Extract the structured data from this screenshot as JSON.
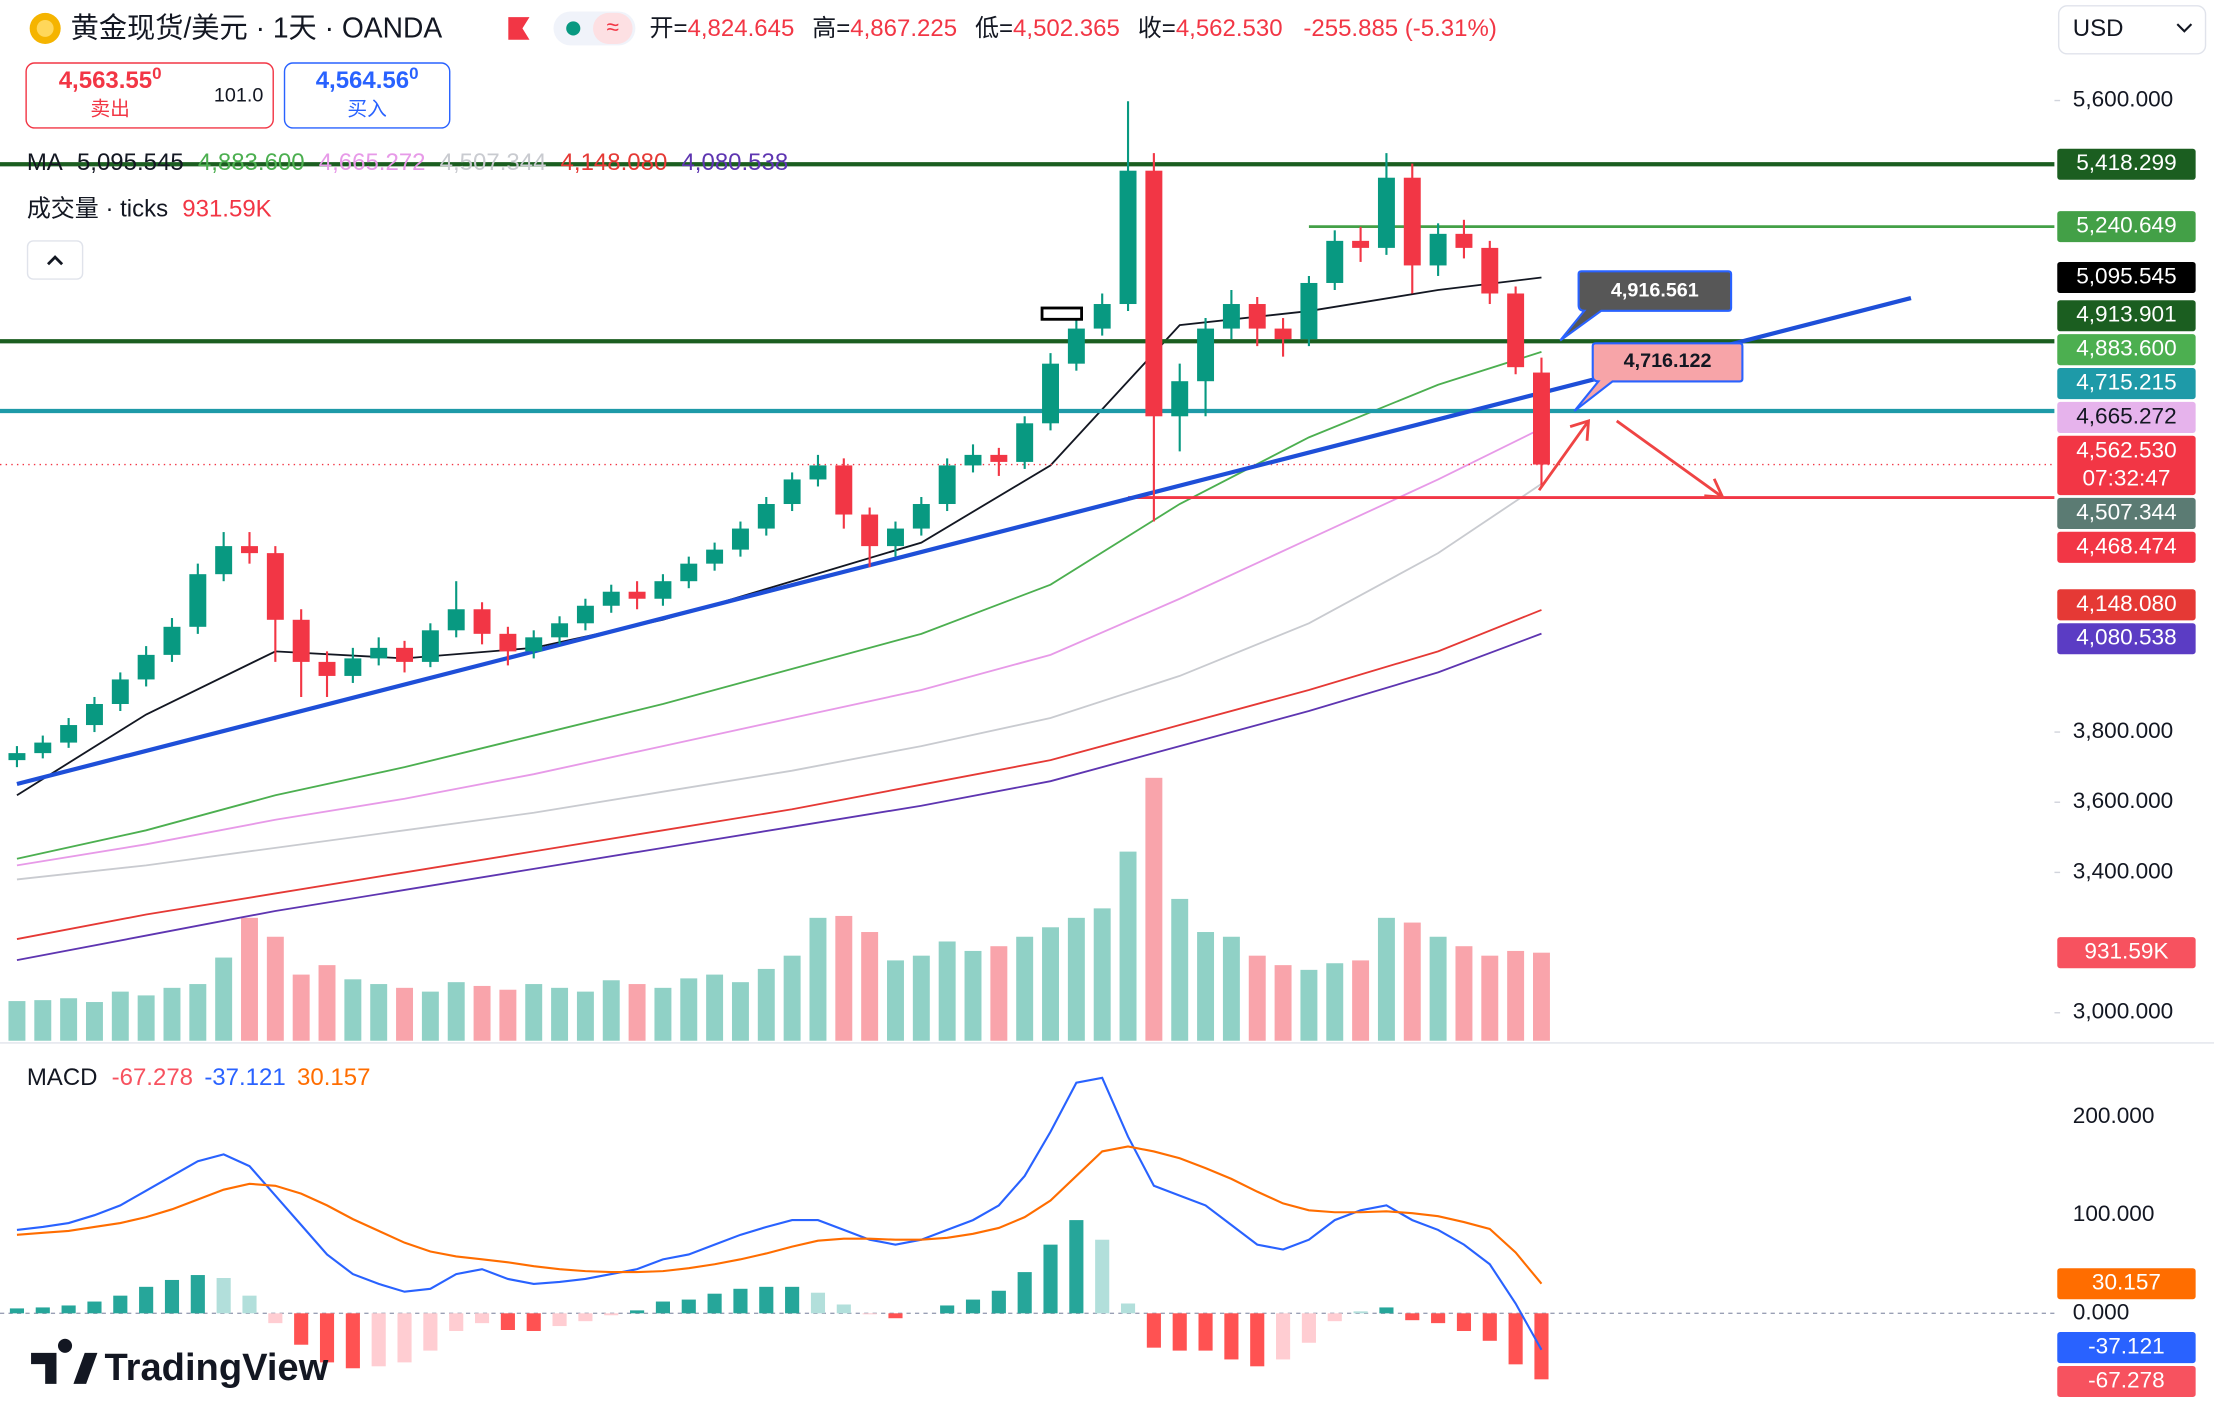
{
  "header": {
    "title": "黄金现货/美元 · 1天 · OANDA",
    "ohlc": [
      {
        "label": "开=",
        "value": "4,824.645"
      },
      {
        "label": "高=",
        "value": "4,867.225"
      },
      {
        "label": "低=",
        "value": "4,502.365"
      },
      {
        "label": "收=",
        "value": "4,562.530"
      }
    ],
    "change": "-255.885 (-5.31%)",
    "sell": {
      "price": "4,563.55",
      "sup": "0",
      "label": "卖出"
    },
    "spread": "101.0",
    "buy": {
      "price": "4,564.56",
      "sup": "0",
      "label": "买入"
    },
    "currency": "USD",
    "logo": "TradingView"
  },
  "chart_data": {
    "type": "candlestick",
    "up_color": "#089981",
    "down_color": "#f23645",
    "ylim": [
      2920,
      5886
    ],
    "yticks": [
      {
        "value": 5600,
        "label": "5,600.000"
      },
      {
        "value": 3800,
        "label": "3,800.000"
      },
      {
        "value": 3600,
        "label": "3,600.000"
      },
      {
        "value": 3400,
        "label": "3,400.000"
      },
      {
        "value": 3000,
        "label": "3,000.000"
      }
    ],
    "candles": [
      [
        3720,
        3760,
        3700,
        3740
      ],
      [
        3740,
        3790,
        3725,
        3770
      ],
      [
        3770,
        3840,
        3755,
        3820
      ],
      [
        3820,
        3900,
        3800,
        3880
      ],
      [
        3880,
        3970,
        3860,
        3950
      ],
      [
        3950,
        4045,
        3930,
        4020
      ],
      [
        4020,
        4125,
        4000,
        4100
      ],
      [
        4100,
        4280,
        4080,
        4250
      ],
      [
        4250,
        4370,
        4230,
        4330
      ],
      [
        4330,
        4370,
        4280,
        4310
      ],
      [
        4310,
        4330,
        4000,
        4120
      ],
      [
        4120,
        4150,
        3900,
        4000
      ],
      [
        4000,
        4030,
        3900,
        3960
      ],
      [
        3960,
        4040,
        3940,
        4010
      ],
      [
        4010,
        4070,
        3990,
        4040
      ],
      [
        4040,
        4060,
        3970,
        4000
      ],
      [
        4000,
        4110,
        3985,
        4090
      ],
      [
        4090,
        4230,
        4070,
        4150
      ],
      [
        4150,
        4170,
        4050,
        4080
      ],
      [
        4080,
        4100,
        3990,
        4030
      ],
      [
        4030,
        4090,
        4010,
        4070
      ],
      [
        4070,
        4130,
        4050,
        4110
      ],
      [
        4110,
        4180,
        4090,
        4160
      ],
      [
        4160,
        4220,
        4140,
        4200
      ],
      [
        4200,
        4230,
        4150,
        4180
      ],
      [
        4180,
        4250,
        4160,
        4230
      ],
      [
        4230,
        4300,
        4210,
        4280
      ],
      [
        4280,
        4340,
        4260,
        4320
      ],
      [
        4320,
        4400,
        4300,
        4380
      ],
      [
        4380,
        4470,
        4360,
        4450
      ],
      [
        4450,
        4540,
        4430,
        4520
      ],
      [
        4520,
        4590,
        4500,
        4560
      ],
      [
        4560,
        4580,
        4380,
        4420
      ],
      [
        4420,
        4440,
        4270,
        4330
      ],
      [
        4330,
        4400,
        4300,
        4380
      ],
      [
        4380,
        4470,
        4360,
        4450
      ],
      [
        4450,
        4580,
        4430,
        4560
      ],
      [
        4560,
        4620,
        4540,
        4590
      ],
      [
        4590,
        4610,
        4530,
        4570
      ],
      [
        4570,
        4700,
        4550,
        4680
      ],
      [
        4680,
        4880,
        4660,
        4850
      ],
      [
        4850,
        4980,
        4830,
        4950
      ],
      [
        4950,
        5050,
        4930,
        5020
      ],
      [
        5020,
        5598,
        5000,
        5400
      ],
      [
        5400,
        5450,
        4400,
        4700
      ],
      [
        4700,
        4850,
        4600,
        4800
      ],
      [
        4800,
        4980,
        4700,
        4950
      ],
      [
        4950,
        5060,
        4920,
        5020
      ],
      [
        5020,
        5040,
        4900,
        4950
      ],
      [
        4950,
        4980,
        4870,
        4920
      ],
      [
        4920,
        5100,
        4900,
        5080
      ],
      [
        5080,
        5230,
        5060,
        5200
      ],
      [
        5200,
        5240,
        5140,
        5180
      ],
      [
        5180,
        5450,
        5160,
        5380
      ],
      [
        5380,
        5420,
        5050,
        5130
      ],
      [
        5130,
        5250,
        5100,
        5220
      ],
      [
        5220,
        5260,
        5150,
        5180
      ],
      [
        5180,
        5200,
        5020,
        5050
      ],
      [
        5050,
        5070,
        4820,
        4840
      ],
      [
        4824.645,
        4867.225,
        4502.365,
        4562.53
      ]
    ],
    "ma_title": "MA",
    "ma_x": [
      0,
      5,
      10,
      15,
      20,
      25,
      30,
      35,
      40,
      45,
      50,
      55,
      59
    ],
    "ma": [
      {
        "color": "#131722",
        "badge_color": "#000000",
        "badge_text": "#ffffff",
        "label": "5,095.545",
        "values": [
          3620,
          3850,
          4030,
          4010,
          4040,
          4120,
          4230,
          4340,
          4560,
          4960,
          5000,
          5060,
          5095.545
        ]
      },
      {
        "color": "#4caf50",
        "badge_color": "#4caf50",
        "badge_text": "#ffffff",
        "label": "4,883.600",
        "values": [
          3439,
          3520,
          3620,
          3700,
          3790,
          3880,
          3980,
          4080,
          4220,
          4450,
          4640,
          4790,
          4883.6
        ]
      },
      {
        "color": "#e79ae8",
        "badge_color": "#e6b3ec",
        "badge_text": "#131722",
        "label": "4,665.272",
        "values": [
          3420,
          3480,
          3550,
          3610,
          3680,
          3760,
          3840,
          3920,
          4020,
          4180,
          4350,
          4520,
          4665.272
        ]
      },
      {
        "color": "#c9cbd0",
        "badge_color": "#5b7b73",
        "badge_text": "#ffffff",
        "label": "4,507.344",
        "values": [
          3380,
          3420,
          3470,
          3520,
          3570,
          3630,
          3690,
          3760,
          3840,
          3960,
          4110,
          4310,
          4507.344
        ]
      },
      {
        "color": "#e53935",
        "badge_color": "#e53935",
        "badge_text": "#ffffff",
        "label": "4,148.080",
        "values": [
          3210,
          3280,
          3340,
          3400,
          3460,
          3520,
          3580,
          3650,
          3720,
          3820,
          3920,
          4030,
          4148.08
        ]
      },
      {
        "color": "#5e35b1",
        "badge_color": "#5b3cc4",
        "badge_text": "#ffffff",
        "label": "4,080.538",
        "values": [
          3150,
          3220,
          3290,
          3350,
          3410,
          3470,
          3530,
          3590,
          3660,
          3760,
          3860,
          3970,
          4080.538
        ]
      }
    ],
    "trendline": {
      "x": [
        0,
        73.3
      ],
      "y": [
        3652,
        5037
      ],
      "color": "#1e4fd8"
    },
    "levels": [
      {
        "value": 5418.299,
        "label": "5,418.299",
        "color": "#1b5e20"
      },
      {
        "value": 5240.649,
        "label": "5,240.649",
        "color": "#43a047",
        "from": 50
      },
      {
        "value": 4913.901,
        "label": "4,913.901",
        "color": "#1b5e20"
      },
      {
        "value": 4715.215,
        "label": "4,715.215",
        "color": "#1e9aa8"
      },
      {
        "value": 4468.474,
        "label": "4,468.474",
        "color": "#f23645",
        "from": 43
      }
    ],
    "current_price": {
      "value": 4562.53,
      "label": "4,562.530",
      "countdown": "07:32:47",
      "color": "#f23645"
    },
    "annotations": [
      {
        "text": "4,916.561"
      },
      {
        "text": "4,716.122"
      }
    ],
    "volume": {
      "title": "成交量 · ticks",
      "label": "931.59K",
      "ylim": [
        0,
        11000
      ],
      "values": [
        420,
        430,
        450,
        410,
        520,
        480,
        560,
        600,
        880,
        1300,
        1100,
        700,
        800,
        650,
        600,
        560,
        520,
        620,
        580,
        540,
        600,
        560,
        520,
        640,
        600,
        560,
        660,
        700,
        620,
        760,
        900,
        1300,
        1320,
        1150,
        850,
        900,
        1050,
        950,
        1000,
        1100,
        1200,
        1300,
        1400,
        2000,
        2780,
        1500,
        1150,
        1100,
        900,
        800,
        750,
        820,
        850,
        1300,
        1250,
        1100,
        1000,
        900,
        950,
        931.59
      ]
    },
    "macd": {
      "title": "MACD",
      "ylim": [
        -106.5,
        273.4
      ],
      "yticks": [
        {
          "value": 200,
          "label": "200.000"
        },
        {
          "value": 100,
          "label": "100.000"
        },
        {
          "value": 0,
          "label": "0.000"
        }
      ],
      "histogram": {
        "label": "-67.278",
        "color": "#f7525f",
        "colors": [
          "#26a69a",
          "#b2dfdb",
          "#ff5252",
          "#ffcdd2"
        ],
        "values": [
          5,
          6,
          8,
          12,
          18,
          27,
          34,
          39,
          36,
          18,
          -10,
          -32,
          -50,
          -56,
          -54,
          -50,
          -38,
          -18,
          -10,
          -17,
          -18,
          -13,
          -8,
          -2,
          3,
          12,
          14,
          20,
          25,
          27,
          27,
          21,
          9,
          -1,
          -5,
          0,
          8,
          14,
          23,
          42,
          70,
          95,
          75,
          10,
          -35,
          -38,
          -38,
          -47,
          -54,
          -47,
          -30,
          -8,
          2,
          6,
          -7,
          -10,
          -18,
          -28,
          -52,
          -67.278
        ]
      },
      "macd": {
        "label": "-37.121",
        "color": "#2962ff",
        "values": [
          85,
          88,
          92,
          100,
          110,
          125,
          140,
          155,
          162,
          150,
          120,
          90,
          60,
          40,
          30,
          22,
          25,
          40,
          45,
          35,
          30,
          32,
          35,
          40,
          45,
          55,
          60,
          70,
          80,
          88,
          95,
          95,
          85,
          75,
          70,
          75,
          85,
          95,
          110,
          140,
          185,
          235,
          240,
          180,
          130,
          120,
          110,
          90,
          70,
          65,
          75,
          95,
          105,
          110,
          95,
          85,
          70,
          50,
          10,
          -37.121
        ]
      },
      "signal": {
        "label": "30.157",
        "color": "#ff6d00",
        "values": [
          80,
          82,
          84,
          88,
          92,
          98,
          106,
          116,
          126,
          132,
          130,
          122,
          110,
          96,
          84,
          72,
          63,
          58,
          55,
          52,
          48,
          45,
          43,
          42,
          42,
          43,
          46,
          50,
          55,
          61,
          68,
          74,
          76,
          76,
          75,
          75,
          77,
          81,
          87,
          98,
          115,
          140,
          165,
          170,
          165,
          158,
          148,
          137,
          124,
          112,
          105,
          103,
          103,
          104,
          102,
          99,
          93,
          86,
          62,
          30.157
        ]
      }
    }
  }
}
